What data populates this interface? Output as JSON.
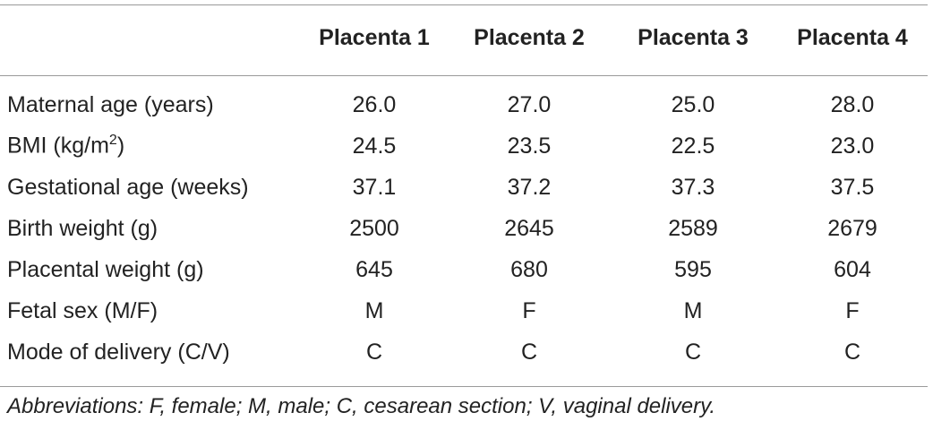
{
  "table": {
    "columns": [
      "",
      "Placenta 1",
      "Placenta 2",
      "Placenta 3",
      "Placenta 4"
    ],
    "rows": [
      {
        "label": "Maternal age (years)",
        "values": [
          "26.0",
          "27.0",
          "25.0",
          "28.0"
        ]
      },
      {
        "label_main": "BMI (kg/m",
        "label_sup": "2",
        "label_end": ")",
        "values": [
          "24.5",
          "23.5",
          "22.5",
          "23.0"
        ]
      },
      {
        "label": "Gestational age (weeks)",
        "values": [
          "37.1",
          "37.2",
          "37.3",
          "37.5"
        ]
      },
      {
        "label": "Birth weight (g)",
        "values": [
          "2500",
          "2645",
          "2589",
          "2679"
        ]
      },
      {
        "label": "Placental weight (g)",
        "values": [
          "645",
          "680",
          "595",
          "604"
        ]
      },
      {
        "label": "Fetal sex (M/F)",
        "values": [
          "M",
          "F",
          "M",
          "F"
        ]
      },
      {
        "label": "Mode of delivery (C/V)",
        "values": [
          "C",
          "C",
          "C",
          "C"
        ]
      }
    ]
  },
  "footnote": "Abbreviations: F, female; M, male; C, cesarean section; V, vaginal delivery."
}
